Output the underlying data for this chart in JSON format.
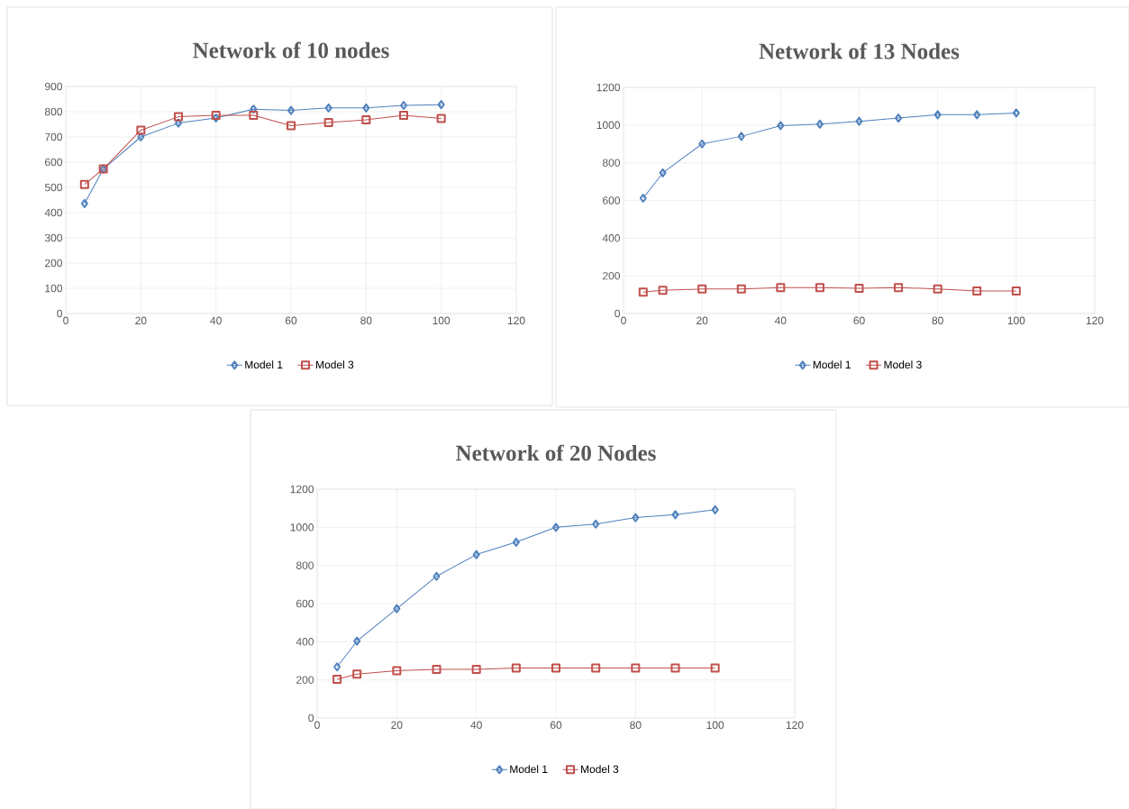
{
  "chart_data": [
    {
      "type": "line",
      "title": "Network of 10 nodes",
      "x": [
        5,
        10,
        20,
        30,
        40,
        50,
        60,
        70,
        80,
        90,
        100
      ],
      "xlim": [
        0,
        120
      ],
      "xticks": [
        0,
        20,
        40,
        60,
        80,
        100,
        120
      ],
      "ylim": [
        0,
        900
      ],
      "yticks": [
        0,
        100,
        200,
        300,
        400,
        500,
        600,
        700,
        800,
        900
      ],
      "grid": true,
      "legend": "bottom",
      "series": [
        {
          "name": "Model 1",
          "color": "#4f81bd",
          "marker": "diamond",
          "values": [
            436,
            573,
            700,
            755,
            775,
            810,
            805,
            815,
            815,
            825,
            828
          ]
        },
        {
          "name": "Model 3",
          "color": "#c0504d",
          "marker": "square",
          "values": [
            512,
            573,
            727,
            780,
            786,
            786,
            745,
            757,
            768,
            786,
            773
          ]
        }
      ]
    },
    {
      "type": "line",
      "title": "Network of 13 Nodes",
      "x": [
        5,
        10,
        20,
        30,
        40,
        50,
        60,
        70,
        80,
        90,
        100
      ],
      "xlim": [
        0,
        120
      ],
      "xticks": [
        0,
        20,
        40,
        60,
        80,
        100,
        120
      ],
      "ylim": [
        0,
        1200
      ],
      "yticks": [
        0,
        200,
        400,
        600,
        800,
        1000,
        1200
      ],
      "grid": true,
      "legend": "bottom",
      "series": [
        {
          "name": "Model 1",
          "color": "#4f81bd",
          "marker": "diamond",
          "values": [
            612,
            746,
            900,
            940,
            997,
            1005,
            1020,
            1037,
            1055,
            1055,
            1064
          ]
        },
        {
          "name": "Model 3",
          "color": "#c0504d",
          "marker": "square",
          "values": [
            113,
            123,
            130,
            130,
            138,
            138,
            134,
            138,
            130,
            120,
            120
          ]
        }
      ]
    },
    {
      "type": "line",
      "title": "Network of 20 Nodes",
      "x": [
        5,
        10,
        20,
        30,
        40,
        50,
        60,
        70,
        80,
        90,
        100
      ],
      "xlim": [
        0,
        120
      ],
      "xticks": [
        0,
        20,
        40,
        60,
        80,
        100,
        120
      ],
      "ylim": [
        0,
        1200
      ],
      "yticks": [
        0,
        200,
        400,
        600,
        800,
        1000,
        1200
      ],
      "grid": true,
      "legend": "bottom",
      "series": [
        {
          "name": "Model 1",
          "color": "#4f81bd",
          "marker": "diamond",
          "values": [
            268,
            403,
            573,
            743,
            857,
            922,
            1000,
            1017,
            1051,
            1066,
            1092
          ]
        },
        {
          "name": "Model 3",
          "color": "#c0504d",
          "marker": "square",
          "values": [
            203,
            230,
            248,
            255,
            255,
            262,
            262,
            262,
            262,
            262,
            262
          ]
        }
      ]
    }
  ]
}
